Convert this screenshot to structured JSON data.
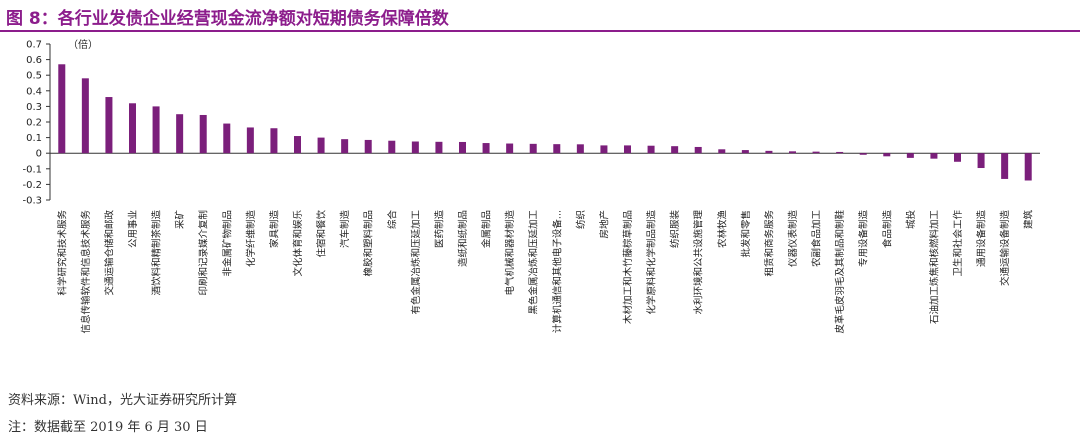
{
  "title": "图 8：各行业发债企业经营现金流净额对短期债务保障倍数",
  "source": "资料来源：Wind，光大证券研究所计算",
  "note": "注：数据截至 2019 年 6 月 30 日",
  "colors": {
    "bar": "#7b1f7b",
    "title": "#8c1d8c"
  },
  "chart_data": {
    "type": "bar",
    "unit_label": "（倍）",
    "ylim": [
      -0.3,
      0.7
    ],
    "yticks": [
      "0.7",
      "0.6",
      "0.5",
      "0.4",
      "0.3",
      "0.2",
      "0.1",
      "0",
      "-0.1",
      "-0.2",
      "-0.3"
    ],
    "grid": false,
    "categories": [
      "科学研究和技术服务",
      "信息传输软件和信息技术服务",
      "交通运输仓储和邮政",
      "公用事业",
      "酒饮料和精制茶制造",
      "采矿",
      "印刷和记录媒介复制",
      "非金属矿物制品",
      "化学纤维制造",
      "家具制造",
      "文化体育和娱乐",
      "住宿和餐饮",
      "汽车制造",
      "橡胶和塑料制品",
      "综合",
      "有色金属冶炼和压延加工",
      "医药制造",
      "造纸和纸制品",
      "金属制品",
      "电气机械和器材制造",
      "黑色金属冶炼和压延加工",
      "计算机通信和其他电子设备...",
      "纺织",
      "房地产",
      "木材加工和木竹藤棕草制品",
      "化学原料和化学制品制造",
      "纺织服装",
      "水利环境和公共设施管理",
      "农林牧渔",
      "批发和零售",
      "租赁和商务服务",
      "仪器仪表制造",
      "农副食品加工",
      "皮革毛皮羽毛及其制品和制鞋",
      "专用设备制造",
      "食品制造",
      "城投",
      "石油加工炼焦和核燃料加工",
      "卫生和社会工作",
      "通用设备制造",
      "交通运输设备制造",
      "建筑"
    ],
    "values": [
      0.57,
      0.48,
      0.36,
      0.32,
      0.3,
      0.25,
      0.245,
      0.19,
      0.165,
      0.16,
      0.11,
      0.1,
      0.09,
      0.085,
      0.08,
      0.075,
      0.073,
      0.072,
      0.065,
      0.062,
      0.06,
      0.058,
      0.057,
      0.05,
      0.05,
      0.048,
      0.045,
      0.04,
      0.025,
      0.02,
      0.015,
      0.012,
      0.01,
      0.008,
      -0.01,
      -0.02,
      -0.03,
      -0.035,
      -0.055,
      -0.095,
      -0.165,
      -0.175
    ]
  }
}
